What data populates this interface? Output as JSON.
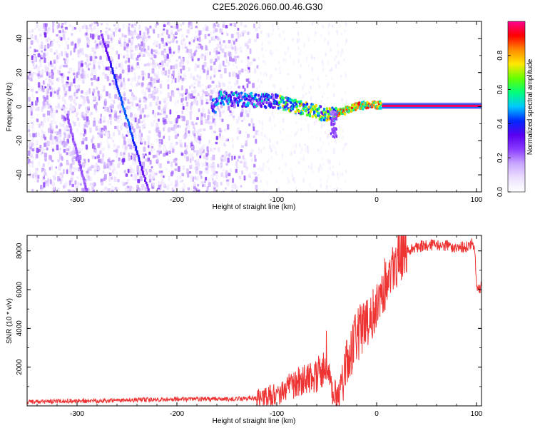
{
  "title": "C2E5.2026.060.00.46.G30",
  "colors": {
    "snr_line": "#ee3333",
    "colormap": [
      "#ffffff",
      "#ece0ff",
      "#c9a6ff",
      "#8a3cff",
      "#5a00f0",
      "#0028ff",
      "#00c8ff",
      "#00ff7a",
      "#66ff00",
      "#ffe800",
      "#ff8a00",
      "#ff0000",
      "#ff0090"
    ]
  },
  "chart_data": [
    {
      "type": "heatmap",
      "xlabel": "Height of straight line (km)",
      "ylabel": "Frequency (Hz)",
      "xlim": [
        -350,
        105
      ],
      "ylim": [
        -50,
        50
      ],
      "xticks": [
        "-300",
        "-200",
        "-100",
        "0",
        "100"
      ],
      "yticks": [
        "-40",
        "-20",
        "0",
        "20",
        "40"
      ],
      "colorbar": {
        "label": "Normalized spectral amplitude",
        "range": [
          0,
          1
        ],
        "ticks": [
          "0.0",
          "0.2",
          "0.4",
          "0.6",
          "0.8"
        ]
      },
      "features": {
        "noise_region_x": [
          -350,
          -120
        ],
        "noise_density_falloff_x": -120,
        "scattered_noise_x": [
          -120,
          -30
        ],
        "signal_trace": [
          {
            "x": -160,
            "y": 5
          },
          {
            "x": -130,
            "y": 4
          },
          {
            "x": -100,
            "y": 3
          },
          {
            "x": -80,
            "y": 0
          },
          {
            "x": -60,
            "y": -3
          },
          {
            "x": -50,
            "y": -5
          },
          {
            "x": -40,
            "y": -4
          },
          {
            "x": -30,
            "y": -2
          },
          {
            "x": -20,
            "y": 0
          },
          {
            "x": -10,
            "y": 1
          },
          {
            "x": 0,
            "y": 1
          },
          {
            "x": 50,
            "y": 0.5
          },
          {
            "x": 105,
            "y": 0.5
          }
        ],
        "diagonal_streaks": [
          {
            "from": {
              "x": -275,
              "y": 42
            },
            "to": {
              "x": -228,
              "y": -50
            }
          },
          {
            "from": {
              "x": -310,
              "y": -5
            },
            "to": {
              "x": -290,
              "y": -50
            }
          }
        ]
      }
    },
    {
      "type": "line",
      "xlabel": "Height of straight line (km)",
      "ylabel": "SNR (10 * v/v)",
      "xlim": [
        -350,
        105
      ],
      "ylim": [
        0,
        8800
      ],
      "xticks": [
        "-300",
        "-200",
        "-100",
        "0",
        "100"
      ],
      "yticks": [
        "2000",
        "4000",
        "6000",
        "8000"
      ],
      "series": [
        {
          "x": [
            -350,
            -300,
            -250,
            -200,
            -150,
            -120,
            -100,
            -90,
            -80,
            -70,
            -60,
            -55,
            -50,
            -45,
            -40,
            -35,
            -30,
            -25,
            -20,
            -15,
            -10,
            -5,
            0,
            5,
            10,
            15,
            20,
            30,
            40,
            50,
            60,
            70,
            80,
            90,
            95,
            98,
            100,
            103,
            105
          ],
          "y": [
            200,
            250,
            300,
            350,
            350,
            400,
            600,
            900,
            1200,
            1500,
            1600,
            1800,
            2000,
            1000,
            500,
            900,
            2500,
            3000,
            3500,
            4000,
            4500,
            4300,
            5500,
            6000,
            6500,
            7000,
            7500,
            8000,
            8200,
            8300,
            8300,
            8250,
            8200,
            8200,
            8400,
            8300,
            6200,
            6000,
            6300
          ]
        }
      ]
    }
  ]
}
